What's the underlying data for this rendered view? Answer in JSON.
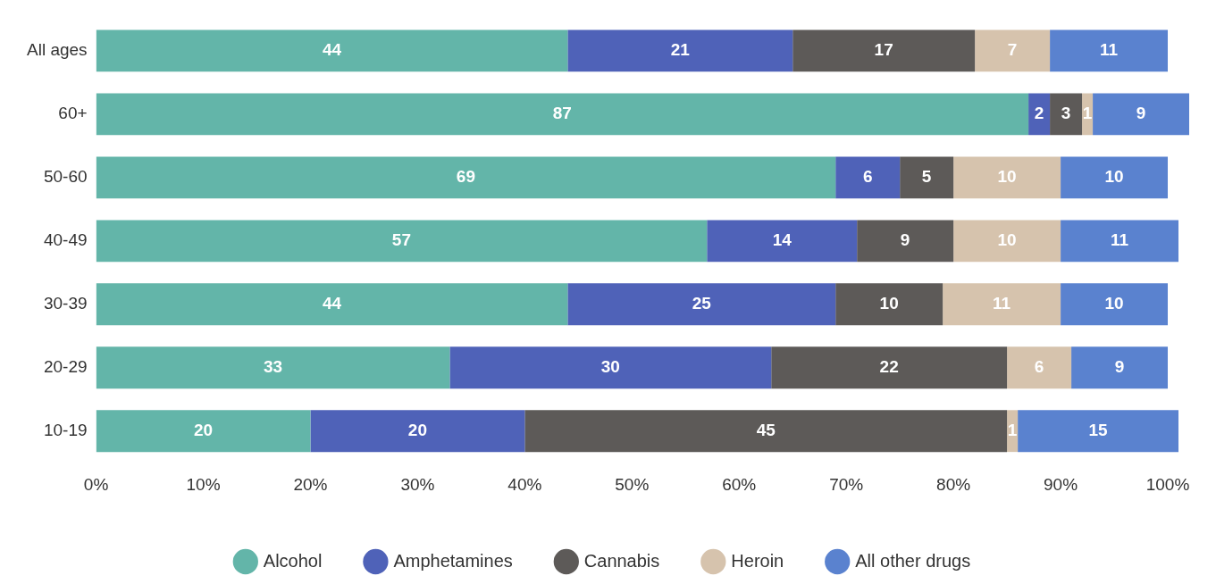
{
  "chart_data": {
    "type": "bar",
    "orientation": "horizontal",
    "stacked": true,
    "data_labels": true,
    "legend": "bottom",
    "grid": false,
    "categories": [
      "All ages",
      "60+",
      "50-60",
      "40-49",
      "30-39",
      "20-29",
      "10-19"
    ],
    "series": [
      {
        "name": "Alcohol",
        "color": "#63b5a9",
        "values": [
          44,
          87,
          69,
          57,
          44,
          33,
          20
        ]
      },
      {
        "name": "Amphetamines",
        "color": "#4f62b8",
        "values": [
          21,
          2,
          6,
          14,
          25,
          30,
          20
        ]
      },
      {
        "name": "Cannabis",
        "color": "#5d5a58",
        "values": [
          17,
          3,
          5,
          9,
          10,
          22,
          45
        ]
      },
      {
        "name": "Heroin",
        "color": "#d6c3ad",
        "values": [
          7,
          1,
          10,
          10,
          11,
          6,
          1
        ]
      },
      {
        "name": "All other drugs",
        "color": "#5a82cf",
        "values": [
          11,
          9,
          10,
          11,
          10,
          9,
          15
        ]
      }
    ],
    "xlim": [
      0,
      102
    ],
    "xticks": [
      {
        "value": 0,
        "label": "0%"
      },
      {
        "value": 10,
        "label": "10%"
      },
      {
        "value": 20,
        "label": "20%"
      },
      {
        "value": 30,
        "label": "30%"
      },
      {
        "value": 40,
        "label": "40%"
      },
      {
        "value": 50,
        "label": "50%"
      },
      {
        "value": 60,
        "label": "60%"
      },
      {
        "value": 70,
        "label": "70%"
      },
      {
        "value": 80,
        "label": "80%"
      },
      {
        "value": 90,
        "label": "90%"
      },
      {
        "value": 100,
        "label": "100%"
      }
    ]
  }
}
